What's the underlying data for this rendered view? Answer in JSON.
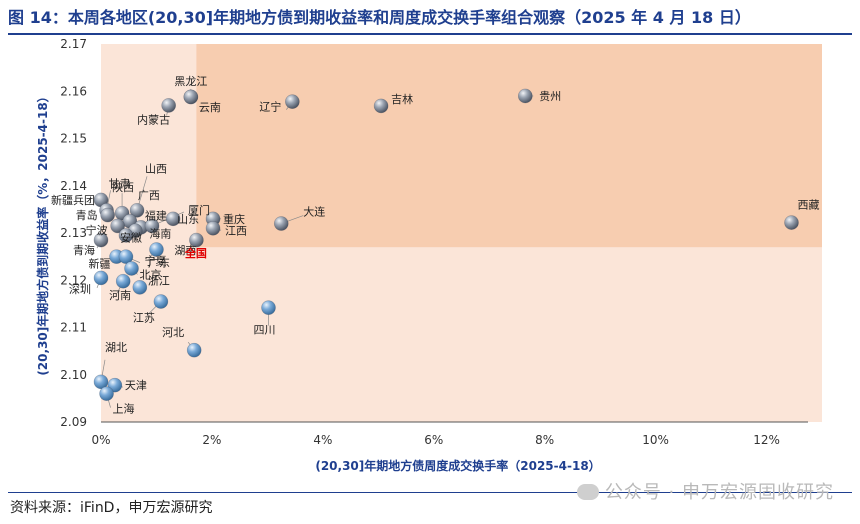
{
  "figure": {
    "title": "图 14：本周各地区(20,30]年期地方债到期收益率和周度成交换手率组合观察（2025 年 4 月 18 日）",
    "source": "资料来源：iFinD，申万宏源研究",
    "watermark": "公众号 · 申万宏源固收研究"
  },
  "chart_data": {
    "type": "scatter",
    "xlabel": "(20,30]年期地方债周度成交换手率（2025-4-18）",
    "ylabel": "(20,30]年期地方债到期收益率（%，2025-4-18）",
    "xlim": [
      0,
      13
    ],
    "ylim": [
      2.09,
      2.17
    ],
    "xticks": [
      0,
      2,
      4,
      6,
      8,
      10,
      12
    ],
    "xtick_labels": [
      "0%",
      "2%",
      "4%",
      "6%",
      "8%",
      "10%",
      "12%"
    ],
    "yticks": [
      2.09,
      2.1,
      2.11,
      2.12,
      2.13,
      2.14,
      2.15,
      2.16,
      2.17
    ],
    "ytick_labels": [
      "2.09",
      "2.10",
      "2.11",
      "2.12",
      "2.13",
      "2.14",
      "2.15",
      "2.16",
      "2.17"
    ],
    "quadrant_split": {
      "x": 1.72,
      "y": 2.127
    },
    "grid": false,
    "colors": {
      "high_yield_region": "#F7CDB0",
      "low_turnover_region": "#FBE5D8",
      "high_yield_point": "#8E98A8",
      "low_yield_point": "#5B9BD5",
      "national_label": "#E00000"
    },
    "points": [
      {
        "name": "黑龙江",
        "x": 1.62,
        "y": 2.1588
      },
      {
        "name": "云南",
        "x": 1.62,
        "y": 2.1588
      },
      {
        "name": "内蒙古",
        "x": 1.22,
        "y": 2.157
      },
      {
        "name": "辽宁",
        "x": 3.45,
        "y": 2.1578
      },
      {
        "name": "吉林",
        "x": 5.05,
        "y": 2.1569
      },
      {
        "name": "贵州",
        "x": 7.65,
        "y": 2.159
      },
      {
        "name": "西藏",
        "x": 12.45,
        "y": 2.1322
      },
      {
        "name": "大连",
        "x": 3.25,
        "y": 2.132
      },
      {
        "name": "重庆",
        "x": 2.02,
        "y": 2.133
      },
      {
        "name": "江西",
        "x": 2.02,
        "y": 2.131
      },
      {
        "name": "湖南",
        "x": 1.72,
        "y": 2.1285
      },
      {
        "name": "全国",
        "x": 1.62,
        "y": 2.1292
      },
      {
        "name": "新疆兵团",
        "x": 0.0,
        "y": 2.137
      },
      {
        "name": "甘肃",
        "x": 0.1,
        "y": 2.1348
      },
      {
        "name": "青岛",
        "x": 0.12,
        "y": 2.1338
      },
      {
        "name": "陕西",
        "x": 0.38,
        "y": 2.1342
      },
      {
        "name": "山西",
        "x": 0.65,
        "y": 2.1348
      },
      {
        "name": "广西",
        "x": 0.52,
        "y": 2.1325
      },
      {
        "name": "福建",
        "x": 0.72,
        "y": 2.1312
      },
      {
        "name": "宁波",
        "x": 0.3,
        "y": 2.1315
      },
      {
        "name": "厦门",
        "x": 0.92,
        "y": 2.1315
      },
      {
        "name": "山东",
        "x": 1.3,
        "y": 2.133
      },
      {
        "name": "海南",
        "x": 0.62,
        "y": 2.1305
      },
      {
        "name": "安徽",
        "x": 0.45,
        "y": 2.1295
      },
      {
        "name": "青海",
        "x": 0.0,
        "y": 2.1285
      },
      {
        "name": "新疆",
        "x": 0.28,
        "y": 2.125
      },
      {
        "name": "宁夏",
        "x": 1.0,
        "y": 2.1265
      },
      {
        "name": "广东",
        "x": 0.45,
        "y": 2.125
      },
      {
        "name": "北京",
        "x": 0.55,
        "y": 2.1225
      },
      {
        "name": "深圳",
        "x": 0.0,
        "y": 2.1205
      },
      {
        "name": "河南",
        "x": 0.4,
        "y": 2.1198
      },
      {
        "name": "浙江",
        "x": 0.7,
        "y": 2.1185
      },
      {
        "name": "江苏",
        "x": 1.08,
        "y": 2.1155
      },
      {
        "name": "四川",
        "x": 3.02,
        "y": 2.1142
      },
      {
        "name": "河北",
        "x": 1.68,
        "y": 2.1052
      },
      {
        "name": "湖北",
        "x": 0.0,
        "y": 2.0985
      },
      {
        "name": "天津",
        "x": 0.25,
        "y": 2.0978
      },
      {
        "name": "上海",
        "x": 0.1,
        "y": 2.096
      }
    ]
  }
}
